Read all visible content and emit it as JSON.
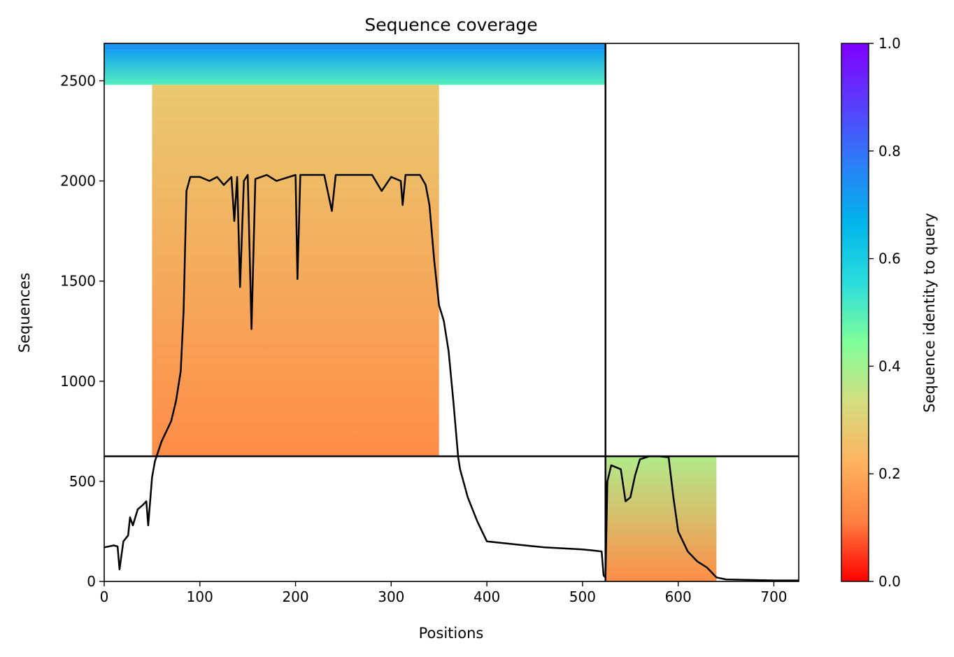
{
  "chart_data": {
    "type": "heatmap",
    "title": "Sequence coverage",
    "xlabel": "Positions",
    "ylabel": "Sequences",
    "xlim": [
      0,
      726
    ],
    "ylim": [
      0,
      2687
    ],
    "grid": false,
    "legend": "none",
    "x_ticks": [
      {
        "value": 0,
        "label": "0"
      },
      {
        "value": 100,
        "label": "100"
      },
      {
        "value": 200,
        "label": "200"
      },
      {
        "value": 300,
        "label": "300"
      },
      {
        "value": 400,
        "label": "400"
      },
      {
        "value": 500,
        "label": "500"
      },
      {
        "value": 600,
        "label": "600"
      },
      {
        "value": 700,
        "label": "700"
      }
    ],
    "y_ticks": [
      {
        "value": 0,
        "label": "0"
      },
      {
        "value": 500,
        "label": "500"
      },
      {
        "value": 1000,
        "label": "1000"
      },
      {
        "value": 1500,
        "label": "1500"
      },
      {
        "value": 2000,
        "label": "2000"
      },
      {
        "value": 2500,
        "label": "2500"
      }
    ],
    "chain_boundary_position": 524,
    "chain_boundary_sequence": 625,
    "colorbar": {
      "label": "Sequence identity to query",
      "range": [
        0,
        1
      ],
      "colormap": [
        "#ff0000",
        "#ff7f40",
        "#ffb360",
        "#d4dd80",
        "#80fe9a",
        "#2adddd",
        "#00b4eb",
        "#2c7ef7",
        "#5a3cfc",
        "#7f00ff"
      ],
      "ticks": [
        {
          "value": 0.0,
          "label": "0.0"
        },
        {
          "value": 0.2,
          "label": "0.2"
        },
        {
          "value": 0.4,
          "label": "0.4"
        },
        {
          "value": 0.6,
          "label": "0.6"
        },
        {
          "value": 0.8,
          "label": "0.8"
        },
        {
          "value": 1.0,
          "label": "1.0"
        }
      ]
    },
    "blocks": [
      {
        "name": "query",
        "seq_start": 2655,
        "seq_end": 2687,
        "pos_start": 0,
        "pos_end": 524,
        "identity_start": 0.74,
        "identity_end": 0.72
      },
      {
        "name": "chain-a-high-identity",
        "seq_start": 2480,
        "seq_end": 2655,
        "pos_start": 0,
        "pos_end": 524,
        "identity_start": 0.5,
        "identity_end": 0.71
      },
      {
        "name": "chain-a-main",
        "seq_start": 625,
        "seq_end": 2480,
        "pos_start": 50,
        "pos_end": 350,
        "identity_start": 0.14,
        "identity_end": 0.28
      },
      {
        "name": "chain-b-main",
        "seq_start": 0,
        "seq_end": 625,
        "pos_start": 524,
        "pos_end": 640,
        "identity_start": 0.14,
        "identity_end": 0.38
      }
    ],
    "coverage": {
      "name": "Coverage",
      "x": [
        0,
        10,
        14,
        16,
        20,
        25,
        27,
        30,
        35,
        40,
        44,
        46,
        50,
        53,
        60,
        70,
        75,
        80,
        83,
        86,
        90,
        100,
        110,
        118,
        125,
        133,
        136,
        139,
        142,
        146,
        150,
        154,
        158,
        170,
        180,
        200,
        202,
        205,
        230,
        238,
        242,
        280,
        290,
        300,
        310,
        312,
        315,
        330,
        336,
        340,
        345,
        350,
        355,
        360,
        365,
        370,
        372,
        380,
        390,
        400,
        420,
        440,
        460,
        480,
        500,
        510,
        520,
        522,
        524,
        526,
        530,
        540,
        545,
        550,
        555,
        560,
        570,
        580,
        590,
        595,
        600,
        610,
        620,
        630,
        640,
        650,
        700,
        720,
        726
      ],
      "y": [
        170,
        180,
        175,
        60,
        200,
        230,
        320,
        280,
        360,
        380,
        400,
        280,
        520,
        600,
        700,
        800,
        900,
        1050,
        1350,
        1950,
        2020,
        2020,
        2000,
        2020,
        1980,
        2020,
        1800,
        2020,
        1470,
        2000,
        2030,
        1260,
        2010,
        2030,
        2000,
        2030,
        1510,
        2030,
        2030,
        1850,
        2030,
        2030,
        1950,
        2020,
        2000,
        1880,
        2030,
        2030,
        1980,
        1880,
        1600,
        1380,
        1300,
        1150,
        900,
        620,
        560,
        420,
        300,
        200,
        190,
        180,
        170,
        165,
        160,
        155,
        150,
        30,
        20,
        500,
        580,
        560,
        400,
        420,
        530,
        610,
        625,
        625,
        620,
        420,
        250,
        150,
        100,
        70,
        20,
        10,
        5,
        5,
        5
      ]
    }
  }
}
